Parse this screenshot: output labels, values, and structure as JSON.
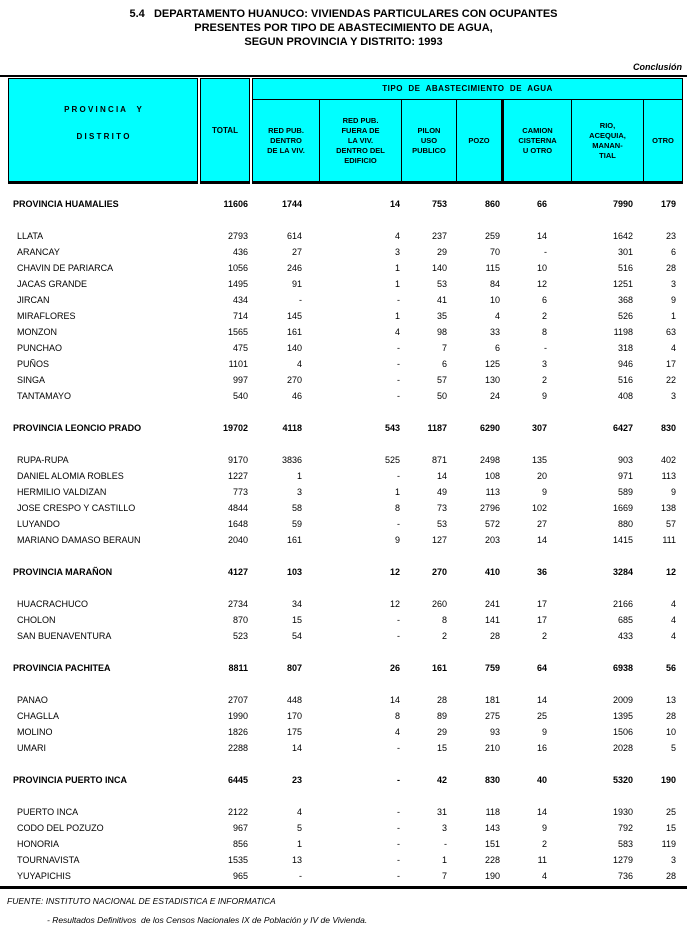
{
  "page": {
    "title_lines": [
      "5.4   DEPARTAMENTO HUANUCO: VIVIENDAS PARTICULARES CON OCUPANTES",
      "PRESENTES POR TIPO DE ABASTECIMIENTO DE AGUA,",
      "SEGUN PROVINCIA Y DISTRITO: 1993"
    ],
    "continuation_label": "Conclusión"
  },
  "colors": {
    "header_fill": "#00FFFF",
    "border": "#000000",
    "text": "#000000"
  },
  "table": {
    "header": {
      "province_label_line1": "P R O V I N C I A     Y",
      "province_label_line2": "D I S T R I T O",
      "total_label": "TOTAL",
      "group_label": "TIPO  DE  ABASTECIMIENTO  DE  AGUA",
      "columns": [
        "RED PUB.\nDENTRO\nDE LA VIV.",
        "RED PUB.\nFUERA DE\nLA VIV.\nDENTRO DEL\nEDIFICIO",
        "PILON\nUSO\nPUBLICO",
        "POZO",
        "CAMION\nCISTERNA\nU OTRO",
        "RIO,\nACEQUIA,\nMANAN-\nTIAL",
        "OTRO"
      ]
    },
    "rows": [
      {
        "type": "province",
        "name": "PROVINCIA HUAMALIES",
        "values": [
          "11606",
          "1744",
          "14",
          "753",
          "860",
          "66",
          "7990",
          "179"
        ]
      },
      {
        "type": "district",
        "name": "LLATA",
        "values": [
          "2793",
          "614",
          "4",
          "237",
          "259",
          "14",
          "1642",
          "23"
        ]
      },
      {
        "type": "district",
        "name": "ARANCAY",
        "values": [
          "436",
          "27",
          "3",
          "29",
          "70",
          "-",
          "301",
          "6"
        ]
      },
      {
        "type": "district",
        "name": "CHAVIN DE PARIARCA",
        "values": [
          "1056",
          "246",
          "1",
          "140",
          "115",
          "10",
          "516",
          "28"
        ]
      },
      {
        "type": "district",
        "name": "JACAS GRANDE",
        "values": [
          "1495",
          "91",
          "1",
          "53",
          "84",
          "12",
          "1251",
          "3"
        ]
      },
      {
        "type": "district",
        "name": "JIRCAN",
        "values": [
          "434",
          "-",
          "-",
          "41",
          "10",
          "6",
          "368",
          "9"
        ]
      },
      {
        "type": "district",
        "name": "MIRAFLORES",
        "values": [
          "714",
          "145",
          "1",
          "35",
          "4",
          "2",
          "526",
          "1"
        ]
      },
      {
        "type": "district",
        "name": "MONZON",
        "values": [
          "1565",
          "161",
          "4",
          "98",
          "33",
          "8",
          "1198",
          "63"
        ]
      },
      {
        "type": "district",
        "name": "PUNCHAO",
        "values": [
          "475",
          "140",
          "-",
          "7",
          "6",
          "-",
          "318",
          "4"
        ]
      },
      {
        "type": "district",
        "name": "PUÑOS",
        "values": [
          "1101",
          "4",
          "-",
          "6",
          "125",
          "3",
          "946",
          "17"
        ]
      },
      {
        "type": "district",
        "name": "SINGA",
        "values": [
          "997",
          "270",
          "-",
          "57",
          "130",
          "2",
          "516",
          "22"
        ]
      },
      {
        "type": "district",
        "name": "TANTAMAYO",
        "values": [
          "540",
          "46",
          "-",
          "50",
          "24",
          "9",
          "408",
          "3"
        ]
      },
      {
        "type": "province",
        "name": "PROVINCIA LEONCIO PRADO",
        "values": [
          "19702",
          "4118",
          "543",
          "1187",
          "6290",
          "307",
          "6427",
          "830"
        ]
      },
      {
        "type": "district",
        "name": "RUPA-RUPA",
        "values": [
          "9170",
          "3836",
          "525",
          "871",
          "2498",
          "135",
          "903",
          "402"
        ]
      },
      {
        "type": "district",
        "name": "DANIEL ALOMIA ROBLES",
        "values": [
          "1227",
          "1",
          "-",
          "14",
          "108",
          "20",
          "971",
          "113"
        ]
      },
      {
        "type": "district",
        "name": "HERMILIO VALDIZAN",
        "values": [
          "773",
          "3",
          "1",
          "49",
          "113",
          "9",
          "589",
          "9"
        ]
      },
      {
        "type": "district",
        "name": "JOSE CRESPO Y CASTILLO",
        "values": [
          "4844",
          "58",
          "8",
          "73",
          "2796",
          "102",
          "1669",
          "138"
        ]
      },
      {
        "type": "district",
        "name": "LUYANDO",
        "values": [
          "1648",
          "59",
          "-",
          "53",
          "572",
          "27",
          "880",
          "57"
        ]
      },
      {
        "type": "district",
        "name": "MARIANO DAMASO BERAUN",
        "values": [
          "2040",
          "161",
          "9",
          "127",
          "203",
          "14",
          "1415",
          "111"
        ]
      },
      {
        "type": "province",
        "name": "PROVINCIA MARAÑON",
        "values": [
          "4127",
          "103",
          "12",
          "270",
          "410",
          "36",
          "3284",
          "12"
        ]
      },
      {
        "type": "district",
        "name": "HUACRACHUCO",
        "values": [
          "2734",
          "34",
          "12",
          "260",
          "241",
          "17",
          "2166",
          "4"
        ]
      },
      {
        "type": "district",
        "name": "CHOLON",
        "values": [
          "870",
          "15",
          "-",
          "8",
          "141",
          "17",
          "685",
          "4"
        ]
      },
      {
        "type": "district",
        "name": "SAN BUENAVENTURA",
        "values": [
          "523",
          "54",
          "-",
          "2",
          "28",
          "2",
          "433",
          "4"
        ]
      },
      {
        "type": "province",
        "name": "PROVINCIA PACHITEA",
        "values": [
          "8811",
          "807",
          "26",
          "161",
          "759",
          "64",
          "6938",
          "56"
        ]
      },
      {
        "type": "district",
        "name": "PANAO",
        "values": [
          "2707",
          "448",
          "14",
          "28",
          "181",
          "14",
          "2009",
          "13"
        ]
      },
      {
        "type": "district",
        "name": "CHAGLLA",
        "values": [
          "1990",
          "170",
          "8",
          "89",
          "275",
          "25",
          "1395",
          "28"
        ]
      },
      {
        "type": "district",
        "name": "MOLINO",
        "values": [
          "1826",
          "175",
          "4",
          "29",
          "93",
          "9",
          "1506",
          "10"
        ]
      },
      {
        "type": "district",
        "name": "UMARI",
        "values": [
          "2288",
          "14",
          "-",
          "15",
          "210",
          "16",
          "2028",
          "5"
        ]
      },
      {
        "type": "province",
        "name": "PROVINCIA PUERTO INCA",
        "values": [
          "6445",
          "23",
          "-",
          "42",
          "830",
          "40",
          "5320",
          "190"
        ]
      },
      {
        "type": "district",
        "name": "PUERTO INCA",
        "values": [
          "2122",
          "4",
          "-",
          "31",
          "118",
          "14",
          "1930",
          "25"
        ]
      },
      {
        "type": "district",
        "name": "CODO DEL POZUZO",
        "values": [
          "967",
          "5",
          "-",
          "3",
          "143",
          "9",
          "792",
          "15"
        ]
      },
      {
        "type": "district",
        "name": "HONORIA",
        "values": [
          "856",
          "1",
          "-",
          "-",
          "151",
          "2",
          "583",
          "119"
        ]
      },
      {
        "type": "district",
        "name": "TOURNAVISTA",
        "values": [
          "1535",
          "13",
          "-",
          "1",
          "228",
          "11",
          "1279",
          "3"
        ]
      },
      {
        "type": "district",
        "name": "YUYAPICHIS",
        "values": [
          "965",
          "-",
          "-",
          "7",
          "190",
          "4",
          "736",
          "28"
        ]
      }
    ]
  },
  "footer": {
    "source_line": "FUENTE: INSTITUTO NACIONAL DE ESTADISTICA E INFORMATICA",
    "note_line": "- Resultados Definitivos  de los Censos Nacionales IX de Población y IV de Vivienda."
  }
}
